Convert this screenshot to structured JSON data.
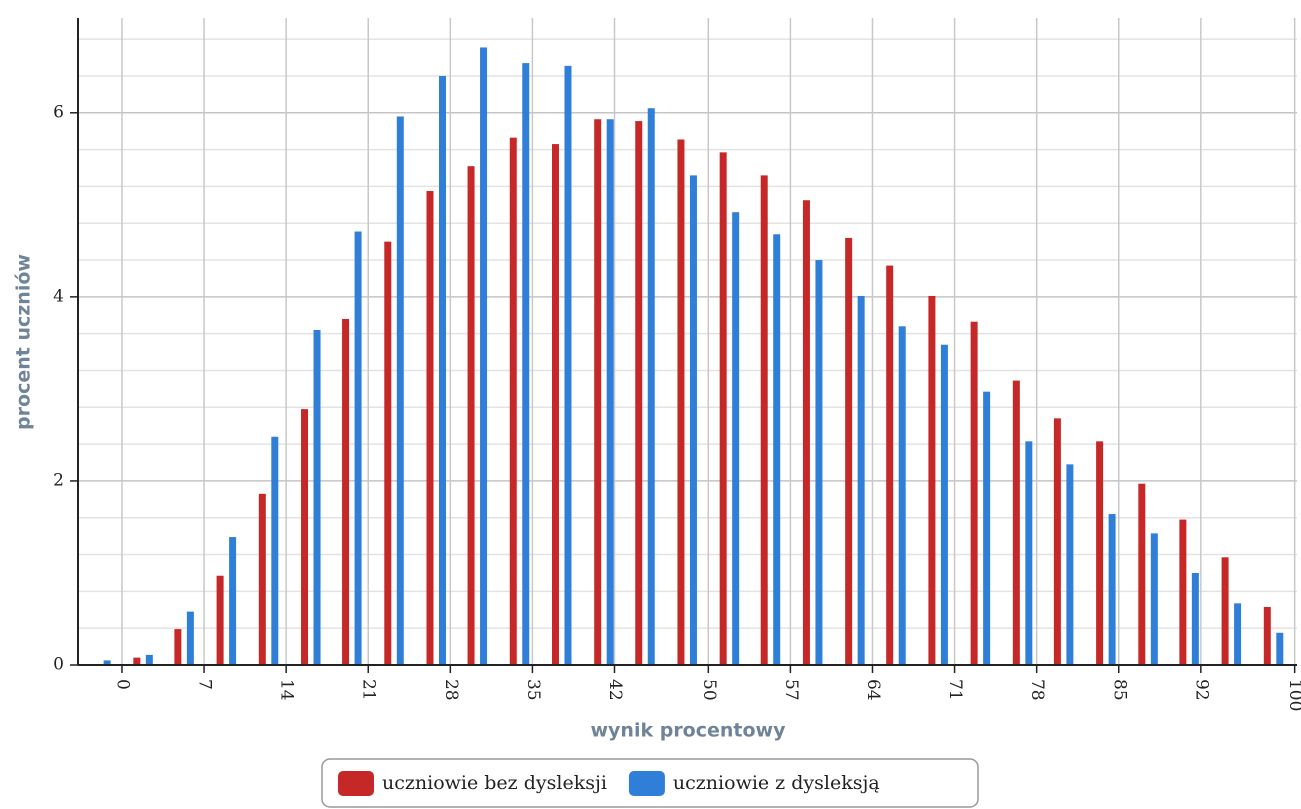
{
  "chart_data": {
    "type": "bar",
    "x_label": "wynik procentowy",
    "y_label": "procent uczniów",
    "x": [
      -1.8,
      1.8,
      5.3,
      8.9,
      12.5,
      16.1,
      19.6,
      23.2,
      26.8,
      30.3,
      33.9,
      37.5,
      41.1,
      44.6,
      48.2,
      51.8,
      55.3,
      58.9,
      62.5,
      66.0,
      69.6,
      73.2,
      76.8,
      80.3,
      83.9,
      87.5,
      91.0,
      94.6,
      98.2
    ],
    "series": [
      {
        "name": "uczniowie bez dysleksji",
        "color": "#c62828",
        "values": [
          0,
          0.08,
          0.39,
          0.97,
          1.86,
          2.78,
          3.76,
          4.6,
          5.15,
          5.42,
          5.73,
          5.66,
          5.93,
          5.91,
          5.71,
          5.57,
          5.32,
          5.05,
          4.64,
          4.34,
          4.01,
          3.73,
          3.09,
          2.68,
          2.43,
          1.97,
          1.58,
          1.17,
          0.63
        ]
      },
      {
        "name": "uczniowie z dysleksją",
        "color": "#2f7fd8",
        "values": [
          0.05,
          0.11,
          0.58,
          1.39,
          2.48,
          3.64,
          4.71,
          5.96,
          6.4,
          6.71,
          6.54,
          6.51,
          5.93,
          6.05,
          5.32,
          4.92,
          4.68,
          4.4,
          4.01,
          3.68,
          3.48,
          2.97,
          2.43,
          2.18,
          1.64,
          1.43,
          1.0,
          0.67,
          0.35
        ]
      }
    ],
    "xlim": [
      -3.75,
      100.2
    ],
    "xticks": [
      0,
      7,
      14,
      21,
      28,
      35,
      42,
      50,
      57,
      64,
      71,
      78,
      85,
      92,
      100
    ],
    "ylim": [
      0,
      7.03
    ],
    "yticks": [
      0,
      2,
      4,
      6
    ],
    "yminorticks": [
      0.4,
      0.8,
      1.2,
      1.6,
      2.4,
      2.8,
      3.2,
      3.6,
      4.4,
      4.8,
      5.2,
      5.6,
      6.4,
      6.8
    ],
    "grid": true,
    "legend": "bottom"
  }
}
